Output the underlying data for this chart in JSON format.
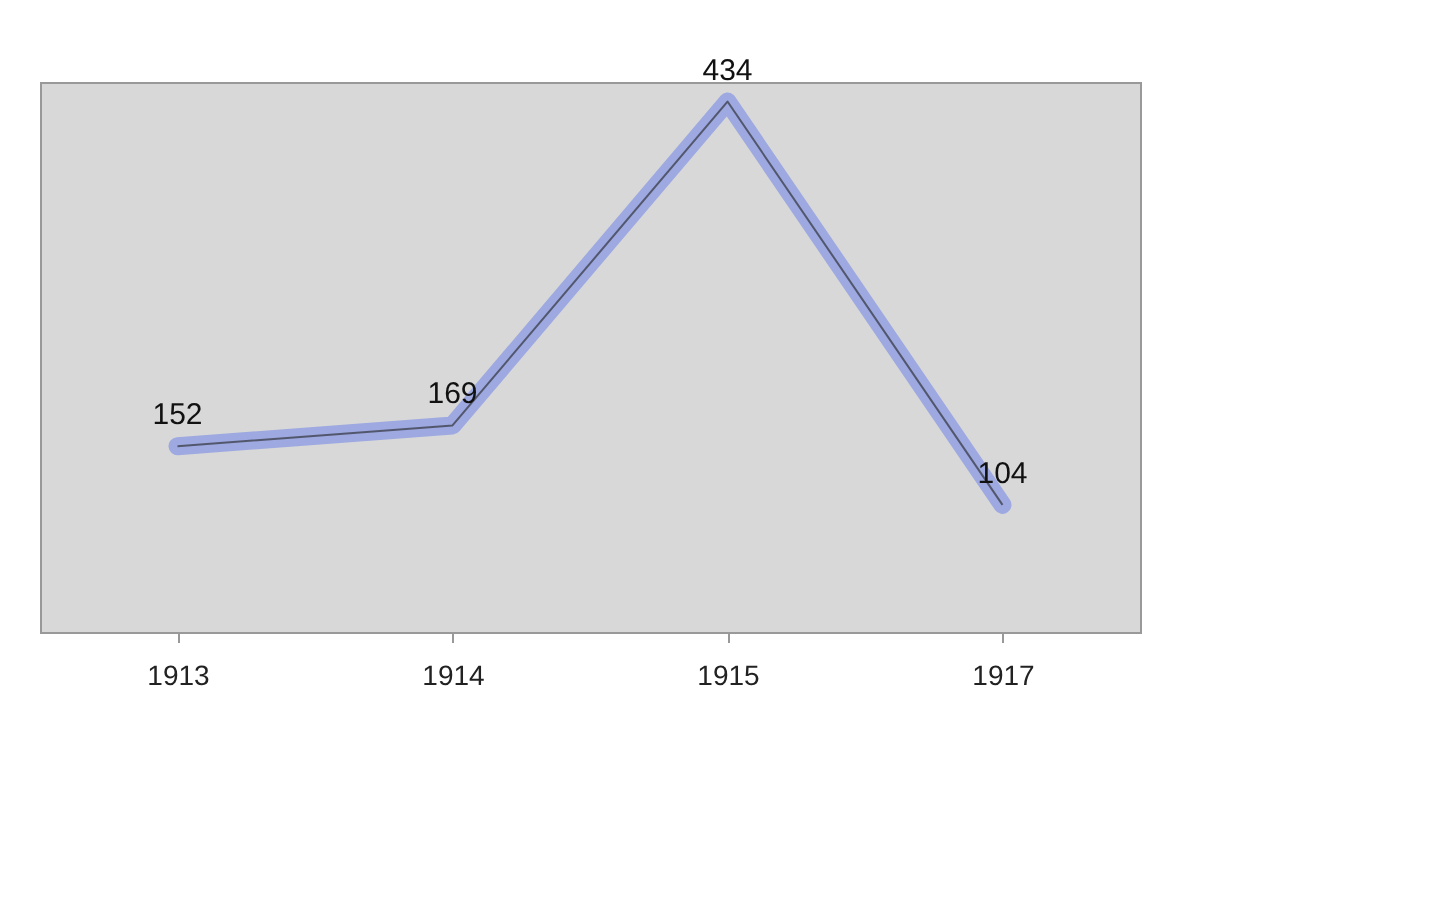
{
  "chart_data": {
    "type": "line",
    "categories": [
      "1913",
      "1914",
      "1915",
      "1917"
    ],
    "values": [
      152,
      169,
      434,
      104
    ],
    "color": "#9da9e0",
    "data_labels": true
  }
}
